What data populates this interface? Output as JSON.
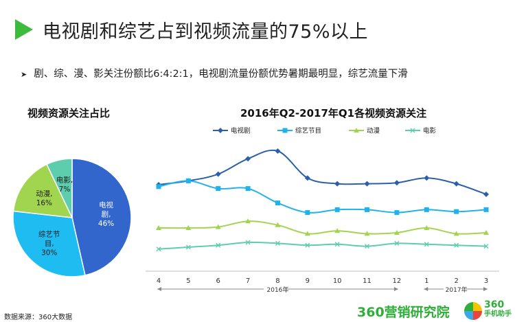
{
  "page": {
    "title": "电视剧和综艺占到视频流量的75%以上",
    "bullet": "剧、综、漫、影关注份额比6:4:2:1，电视剧流量份额优势暑期最明显，综艺流量下滑",
    "source": "数据来源：360大数据",
    "brand_main": "360营销研究院",
    "app_logo_line1": "360",
    "app_logo_line2": "手机助手"
  },
  "chart_data": [
    {
      "type": "pie",
      "title": "视频资源关注占比",
      "slices": [
        {
          "name": "电视剧",
          "label_lines": [
            "电视",
            "剧,",
            "46%"
          ],
          "value": 46,
          "color": "#3366cc"
        },
        {
          "name": "综艺节目",
          "label_lines": [
            "综艺节",
            "目,",
            "30%"
          ],
          "value": 30,
          "color": "#1fbcf2"
        },
        {
          "name": "动漫",
          "label_lines": [
            "动漫,",
            "16%"
          ],
          "value": 16,
          "color": "#a2d54f"
        },
        {
          "name": "电影",
          "label_lines": [
            "电影,",
            "7%"
          ],
          "value": 7,
          "color": "#5dcdae"
        }
      ]
    },
    {
      "type": "line",
      "title": "2016年Q2-2017年Q1各视频资源关注",
      "categories": [
        "4",
        "5",
        "6",
        "7",
        "8",
        "9",
        "10",
        "11",
        "12",
        "1",
        "2",
        "3"
      ],
      "year_labels": [
        "2016年",
        "2017年"
      ],
      "legend_position": "top",
      "ylim": [
        0,
        100
      ],
      "series": [
        {
          "name": "电视剧",
          "color": "#2c5faa",
          "marker": "diamond",
          "values": [
            80,
            84,
            91,
            107,
            115,
            87,
            81,
            81,
            82,
            87,
            81,
            70
          ]
        },
        {
          "name": "综艺节目",
          "color": "#1fb2ec",
          "marker": "square",
          "values": [
            78,
            84,
            76,
            76,
            61,
            51,
            54,
            54,
            51,
            54,
            52,
            54
          ]
        },
        {
          "name": "动漫",
          "color": "#a2d54f",
          "marker": "triangle",
          "values": [
            35,
            35,
            36,
            42,
            38,
            29,
            32,
            29,
            30,
            35,
            29,
            30
          ]
        },
        {
          "name": "电影",
          "color": "#5dcdae",
          "marker": "x",
          "values": [
            13,
            15,
            17,
            20,
            19,
            17,
            18,
            16,
            19,
            18,
            17,
            16
          ]
        }
      ]
    }
  ]
}
